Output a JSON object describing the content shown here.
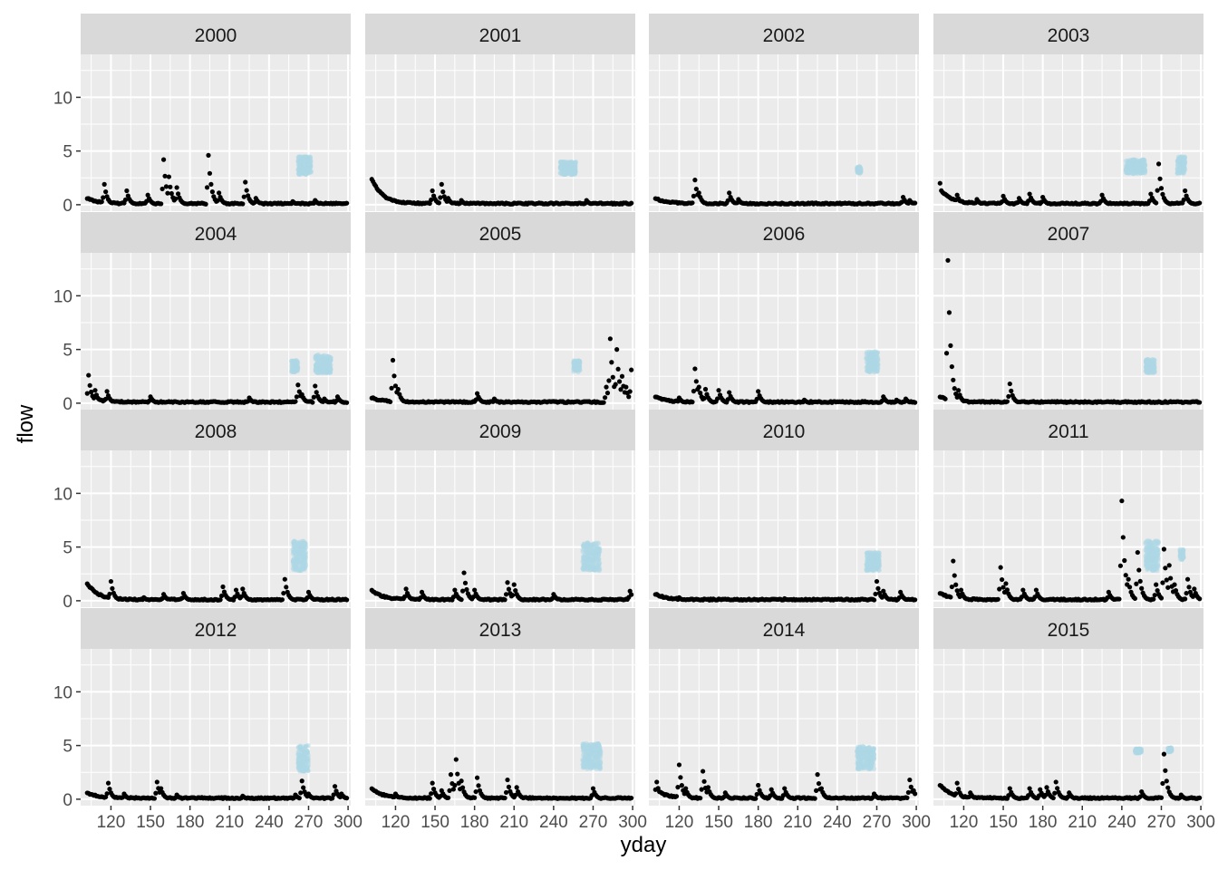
{
  "chart_data": {
    "type": "scatter",
    "facet_by": "year",
    "xlabel": "yday",
    "ylabel": "flow",
    "xlim": [
      97,
      302
    ],
    "ylim": [
      -0.6,
      14
    ],
    "x_ticks": [
      120,
      150,
      180,
      210,
      240,
      270,
      300
    ],
    "y_ticks": [
      0,
      5,
      10
    ],
    "grid": true,
    "colors": {
      "panel_bg": "#ebebeb",
      "grid": "#ffffff",
      "strip_bg": "#d9d9d9",
      "points": "#000000",
      "highlight": "#add8e6"
    },
    "panels": [
      {
        "label": "2000",
        "peaks": [
          [
            115,
            1.9
          ],
          [
            132,
            1.3
          ],
          [
            148,
            0.9
          ],
          [
            160,
            4.2
          ],
          [
            164,
            2.6
          ],
          [
            170,
            1.6
          ],
          [
            194,
            4.6
          ],
          [
            196,
            1.9
          ],
          [
            202,
            1.1
          ],
          [
            222,
            2.1
          ],
          [
            230,
            0.6
          ],
          [
            258,
            0.3
          ],
          [
            275,
            0.4
          ]
        ],
        "blue": [
          [
            262,
            272,
            2.8,
            4.5
          ]
        ]
      },
      {
        "label": "2001",
        "start": 2.3,
        "peaks": [
          [
            148,
            1.3
          ],
          [
            155,
            1.9
          ],
          [
            160,
            0.6
          ],
          [
            170,
            0.4
          ],
          [
            265,
            0.4
          ]
        ],
        "blue": [
          [
            245,
            257,
            2.8,
            4.0
          ]
        ]
      },
      {
        "label": "2002",
        "peaks": [
          [
            132,
            2.3
          ],
          [
            135,
            1.1
          ],
          [
            158,
            1.1
          ],
          [
            165,
            0.5
          ],
          [
            290,
            0.7
          ],
          [
            295,
            0.4
          ]
        ],
        "blue": [
          [
            255,
            258,
            2.9,
            3.6
          ]
        ]
      },
      {
        "label": "2003",
        "start": 1.4,
        "peaks": [
          [
            102,
            2.0
          ],
          [
            115,
            0.9
          ],
          [
            130,
            0.5
          ],
          [
            150,
            0.8
          ],
          [
            162,
            0.6
          ],
          [
            170,
            1.0
          ],
          [
            180,
            0.7
          ],
          [
            225,
            0.9
          ],
          [
            262,
            1.0
          ],
          [
            268,
            3.8
          ],
          [
            269,
            1.9
          ],
          [
            288,
            1.3
          ]
        ],
        "blue": [
          [
            243,
            258,
            2.9,
            4.2
          ],
          [
            282,
            288,
            2.9,
            4.5
          ]
        ]
      },
      {
        "label": "2004",
        "start": 0.6,
        "peaks": [
          [
            103,
            2.6
          ],
          [
            108,
            1.2
          ],
          [
            117,
            1.1
          ],
          [
            150,
            0.6
          ],
          [
            225,
            0.5
          ],
          [
            262,
            1.7
          ],
          [
            265,
            0.8
          ],
          [
            275,
            1.6
          ],
          [
            282,
            0.4
          ],
          [
            292,
            0.6
          ]
        ],
        "blue": [
          [
            257,
            262,
            2.9,
            4.0
          ],
          [
            275,
            287,
            2.8,
            4.5
          ]
        ]
      },
      {
        "label": "2005",
        "start": 0.4,
        "peaks": [
          [
            118,
            4.0
          ],
          [
            122,
            1.3
          ],
          [
            182,
            0.9
          ],
          [
            195,
            0.4
          ],
          [
            280,
            1.5
          ],
          [
            283,
            6.0
          ],
          [
            288,
            5.0
          ],
          [
            292,
            2.5
          ],
          [
            295,
            1.5
          ],
          [
            299,
            3.1
          ],
          [
            300,
            2.0
          ]
        ],
        "blue": [
          [
            255,
            260,
            2.9,
            4.0
          ]
        ]
      },
      {
        "label": "2006",
        "peaks": [
          [
            120,
            0.5
          ],
          [
            132,
            3.2
          ],
          [
            135,
            1.5
          ],
          [
            140,
            1.3
          ],
          [
            150,
            1.2
          ],
          [
            158,
            1.0
          ],
          [
            180,
            1.1
          ],
          [
            215,
            0.3
          ],
          [
            275,
            0.6
          ],
          [
            285,
            0.3
          ],
          [
            292,
            0.4
          ]
        ],
        "blue": [
          [
            262,
            271,
            2.9,
            4.8
          ]
        ]
      },
      {
        "label": "2007",
        "peaks": [
          [
            108,
            13.3
          ],
          [
            109,
            3.7
          ],
          [
            112,
            2.0
          ],
          [
            116,
            1.2
          ],
          [
            155,
            1.8
          ],
          [
            156,
            1.1
          ]
        ],
        "blue": [
          [
            258,
            265,
            2.8,
            4.1
          ]
        ]
      },
      {
        "label": "2008",
        "start": 1.5,
        "peaks": [
          [
            120,
            1.8
          ],
          [
            145,
            0.3
          ],
          [
            160,
            0.6
          ],
          [
            175,
            0.7
          ],
          [
            205,
            1.3
          ],
          [
            215,
            1.0
          ],
          [
            220,
            1.1
          ],
          [
            252,
            2.0
          ],
          [
            270,
            0.8
          ]
        ],
        "blue": [
          [
            258,
            268,
            2.8,
            5.6
          ]
        ]
      },
      {
        "label": "2009",
        "start": 0.9,
        "peaks": [
          [
            105,
            0.6
          ],
          [
            128,
            1.1
          ],
          [
            140,
            0.8
          ],
          [
            165,
            1.0
          ],
          [
            172,
            2.6
          ],
          [
            180,
            1.0
          ],
          [
            205,
            1.7
          ],
          [
            210,
            1.5
          ],
          [
            240,
            0.6
          ],
          [
            298,
            0.9
          ]
        ],
        "blue": [
          [
            262,
            275,
            2.8,
            5.4
          ]
        ]
      },
      {
        "label": "2010",
        "start": 0.5,
        "peaks": [
          [
            120,
            0.3
          ],
          [
            200,
            0.2
          ],
          [
            270,
            1.8
          ],
          [
            275,
            0.9
          ],
          [
            288,
            0.8
          ]
        ],
        "blue": [
          [
            262,
            272,
            2.8,
            4.5
          ]
        ]
      },
      {
        "label": "2011",
        "start": 0.6,
        "peaks": [
          [
            112,
            3.7
          ],
          [
            118,
            1.0
          ],
          [
            148,
            3.1
          ],
          [
            152,
            1.6
          ],
          [
            165,
            1.0
          ],
          [
            175,
            1.0
          ],
          [
            230,
            0.8
          ],
          [
            240,
            9.3
          ],
          [
            245,
            2.0
          ],
          [
            252,
            4.5
          ],
          [
            266,
            1.5
          ],
          [
            272,
            4.8
          ],
          [
            276,
            3.3
          ],
          [
            280,
            1.5
          ],
          [
            290,
            2.0
          ],
          [
            295,
            1.1
          ]
        ],
        "blue": [
          [
            258,
            268,
            2.8,
            5.6
          ],
          [
            284,
            287,
            3.8,
            4.8
          ]
        ]
      },
      {
        "label": "2012",
        "peaks": [
          [
            118,
            1.5
          ],
          [
            130,
            0.5
          ],
          [
            155,
            1.6
          ],
          [
            158,
            1.0
          ],
          [
            170,
            0.4
          ],
          [
            220,
            0.3
          ],
          [
            260,
            0.4
          ],
          [
            265,
            1.7
          ],
          [
            270,
            0.5
          ],
          [
            290,
            1.2
          ],
          [
            295,
            0.5
          ]
        ],
        "blue": [
          [
            262,
            270,
            2.6,
            5.0
          ]
        ]
      },
      {
        "label": "2013",
        "start": 0.9,
        "peaks": [
          [
            120,
            0.5
          ],
          [
            148,
            1.5
          ],
          [
            155,
            0.8
          ],
          [
            162,
            2.3
          ],
          [
            166,
            3.7
          ],
          [
            170,
            1.7
          ],
          [
            182,
            2.0
          ],
          [
            205,
            1.8
          ],
          [
            212,
            1.1
          ],
          [
            270,
            1.0
          ]
        ],
        "blue": [
          [
            262,
            276,
            2.8,
            5.2
          ]
        ]
      },
      {
        "label": "2014",
        "start": 0.8,
        "peaks": [
          [
            103,
            1.6
          ],
          [
            120,
            3.2
          ],
          [
            125,
            1.0
          ],
          [
            138,
            2.6
          ],
          [
            142,
            1.1
          ],
          [
            155,
            0.6
          ],
          [
            180,
            1.3
          ],
          [
            190,
            0.9
          ],
          [
            200,
            1.0
          ],
          [
            225,
            2.3
          ],
          [
            228,
            1.0
          ],
          [
            268,
            0.5
          ],
          [
            295,
            1.8
          ],
          [
            298,
            0.8
          ]
        ],
        "blue": [
          [
            255,
            268,
            2.8,
            5.0
          ]
        ]
      },
      {
        "label": "2015",
        "start": 1.2,
        "peaks": [
          [
            115,
            1.5
          ],
          [
            125,
            0.6
          ],
          [
            155,
            1.0
          ],
          [
            170,
            1.0
          ],
          [
            178,
            0.9
          ],
          [
            183,
            1.1
          ],
          [
            190,
            1.6
          ],
          [
            200,
            0.6
          ],
          [
            255,
            0.7
          ],
          [
            272,
            4.2
          ],
          [
            275,
            1.0
          ],
          [
            285,
            0.4
          ]
        ],
        "blue": [
          [
            250,
            255,
            4.3,
            4.7
          ],
          [
            275,
            278,
            4.4,
            4.8
          ]
        ]
      }
    ]
  }
}
